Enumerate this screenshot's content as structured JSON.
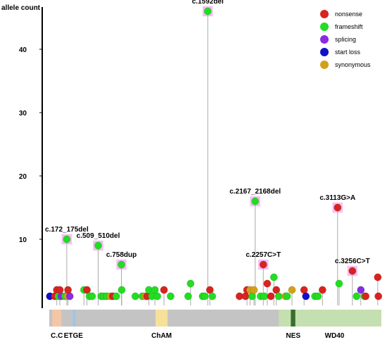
{
  "chart_data": {
    "type": "lollipop",
    "ylabel": "allele count",
    "yticks": [
      10,
      20,
      30,
      40
    ],
    "ylim": [
      0,
      46
    ],
    "xlim": [
      0,
      1100
    ],
    "colors": {
      "nonsense": "#d9231f",
      "frameshift": "#22dd22",
      "splicing": "#8a2be2",
      "start loss": "#1010cc",
      "synonymous": "#d4a017",
      "highlight": "#ee88ee",
      "stem": "#aaaaaa",
      "protein": "#c4c4c4",
      "wd40": "#c5e0b0",
      "cc": "#f4c6a6",
      "etge": "#9ec6e8",
      "cham": "#f7e09a",
      "nes": "#3b6e2b"
    },
    "legend": [
      {
        "label": "nonsense",
        "type": "nonsense"
      },
      {
        "label": "frameshift",
        "type": "frameshift"
      },
      {
        "label": "splicing",
        "type": "splicing"
      },
      {
        "label": "start loss",
        "type": "start loss"
      },
      {
        "label": "synonymous",
        "type": "synonymous"
      }
    ],
    "domains": [
      {
        "label": "C.C",
        "start": 10,
        "end": 40,
        "color": "cc"
      },
      {
        "label": "ETGE",
        "start": 78,
        "end": 88,
        "color": "etge",
        "label_pos": 80
      },
      {
        "label": "ChAM",
        "start": 352,
        "end": 392,
        "color": "cham"
      },
      {
        "label": "NES",
        "start": 760,
        "end": 860,
        "color": "wd40",
        "label_pos": 808
      },
      {
        "label": "WD40",
        "start": 860,
        "end": 1100,
        "color": "wd40",
        "label_pos": 945
      }
    ],
    "nes_marker": {
      "start": 800,
      "end": 815
    },
    "annotations": [
      {
        "label": "c.1592del",
        "x": 525,
        "y": 46
      },
      {
        "label": "c.172_175del",
        "x": 58,
        "y": 10
      },
      {
        "label": "c.509_510del",
        "x": 162,
        "y": 9
      },
      {
        "label": "c.758dup",
        "x": 239,
        "y": 6
      },
      {
        "label": "c.2167_2168del",
        "x": 682,
        "y": 16
      },
      {
        "label": "c.2257C>T",
        "x": 709,
        "y": 6
      },
      {
        "label": "c.3113G>A",
        "x": 955,
        "y": 15
      },
      {
        "label": "c.3256C>T",
        "x": 1004,
        "y": 5
      }
    ],
    "points": [
      {
        "x": 2,
        "y": 1,
        "type": "start loss"
      },
      {
        "x": 18,
        "y": 1,
        "type": "nonsense"
      },
      {
        "x": 25,
        "y": 2,
        "type": "nonsense"
      },
      {
        "x": 30,
        "y": 1,
        "type": "frameshift"
      },
      {
        "x": 35,
        "y": 2,
        "type": "nonsense"
      },
      {
        "x": 40,
        "y": 1,
        "type": "splicing"
      },
      {
        "x": 52,
        "y": 1,
        "type": "frameshift"
      },
      {
        "x": 58,
        "y": 10,
        "type": "frameshift",
        "hl": true
      },
      {
        "x": 60,
        "y": 1,
        "type": "synonymous"
      },
      {
        "x": 62,
        "y": 2,
        "type": "nonsense"
      },
      {
        "x": 68,
        "y": 1,
        "type": "splicing"
      },
      {
        "x": 115,
        "y": 2,
        "type": "frameshift"
      },
      {
        "x": 125,
        "y": 2,
        "type": "nonsense"
      },
      {
        "x": 133,
        "y": 1,
        "type": "frameshift"
      },
      {
        "x": 142,
        "y": 1,
        "type": "frameshift"
      },
      {
        "x": 162,
        "y": 9,
        "type": "frameshift",
        "hl": true
      },
      {
        "x": 172,
        "y": 1,
        "type": "frameshift"
      },
      {
        "x": 180,
        "y": 1,
        "type": "frameshift"
      },
      {
        "x": 190,
        "y": 1,
        "type": "frameshift"
      },
      {
        "x": 202,
        "y": 1,
        "type": "synonymous"
      },
      {
        "x": 210,
        "y": 1,
        "type": "nonsense"
      },
      {
        "x": 222,
        "y": 1,
        "type": "frameshift"
      },
      {
        "x": 239,
        "y": 6,
        "type": "frameshift",
        "hl": true
      },
      {
        "x": 240,
        "y": 2,
        "type": "frameshift"
      },
      {
        "x": 285,
        "y": 1,
        "type": "frameshift"
      },
      {
        "x": 308,
        "y": 1,
        "type": "frameshift"
      },
      {
        "x": 318,
        "y": 1,
        "type": "synonymous"
      },
      {
        "x": 324,
        "y": 1,
        "type": "nonsense"
      },
      {
        "x": 330,
        "y": 2,
        "type": "frameshift"
      },
      {
        "x": 340,
        "y": 1,
        "type": "frameshift"
      },
      {
        "x": 350,
        "y": 2,
        "type": "frameshift"
      },
      {
        "x": 358,
        "y": 1,
        "type": "frameshift"
      },
      {
        "x": 380,
        "y": 2,
        "type": "nonsense"
      },
      {
        "x": 402,
        "y": 1,
        "type": "frameshift"
      },
      {
        "x": 460,
        "y": 1,
        "type": "frameshift"
      },
      {
        "x": 468,
        "y": 3,
        "type": "frameshift"
      },
      {
        "x": 508,
        "y": 1,
        "type": "frameshift"
      },
      {
        "x": 515,
        "y": 1,
        "type": "frameshift"
      },
      {
        "x": 525,
        "y": 46,
        "type": "frameshift",
        "hl": true
      },
      {
        "x": 532,
        "y": 2,
        "type": "nonsense"
      },
      {
        "x": 540,
        "y": 1,
        "type": "frameshift"
      },
      {
        "x": 630,
        "y": 1,
        "type": "nonsense"
      },
      {
        "x": 650,
        "y": 1,
        "type": "nonsense"
      },
      {
        "x": 655,
        "y": 2,
        "type": "nonsense"
      },
      {
        "x": 665,
        "y": 2,
        "type": "synonymous"
      },
      {
        "x": 672,
        "y": 1,
        "type": "frameshift"
      },
      {
        "x": 678,
        "y": 2,
        "type": "synonymous"
      },
      {
        "x": 682,
        "y": 16,
        "type": "frameshift",
        "hl": true
      },
      {
        "x": 700,
        "y": 1,
        "type": "frameshift"
      },
      {
        "x": 709,
        "y": 6,
        "type": "nonsense",
        "hl": true
      },
      {
        "x": 712,
        "y": 1,
        "type": "frameshift"
      },
      {
        "x": 722,
        "y": 3,
        "type": "nonsense"
      },
      {
        "x": 734,
        "y": 1,
        "type": "nonsense"
      },
      {
        "x": 744,
        "y": 4,
        "type": "frameshift"
      },
      {
        "x": 752,
        "y": 2,
        "type": "nonsense"
      },
      {
        "x": 760,
        "y": 1,
        "type": "frameshift"
      },
      {
        "x": 782,
        "y": 1,
        "type": "synonymous"
      },
      {
        "x": 788,
        "y": 1,
        "type": "frameshift"
      },
      {
        "x": 804,
        "y": 2,
        "type": "synonymous"
      },
      {
        "x": 844,
        "y": 2,
        "type": "nonsense"
      },
      {
        "x": 850,
        "y": 1,
        "type": "start loss"
      },
      {
        "x": 880,
        "y": 1,
        "type": "frameshift"
      },
      {
        "x": 890,
        "y": 1,
        "type": "frameshift"
      },
      {
        "x": 905,
        "y": 2,
        "type": "nonsense"
      },
      {
        "x": 955,
        "y": 15,
        "type": "nonsense",
        "hl": true
      },
      {
        "x": 960,
        "y": 3,
        "type": "frameshift"
      },
      {
        "x": 1004,
        "y": 5,
        "type": "nonsense",
        "hl": true
      },
      {
        "x": 1018,
        "y": 1,
        "type": "frameshift"
      },
      {
        "x": 1032,
        "y": 2,
        "type": "splicing"
      },
      {
        "x": 1044,
        "y": 1,
        "type": "frameshift"
      },
      {
        "x": 1048,
        "y": 1,
        "type": "nonsense"
      },
      {
        "x": 1088,
        "y": 4,
        "type": "nonsense"
      },
      {
        "x": 1090,
        "y": 1,
        "type": "nonsense"
      }
    ]
  }
}
